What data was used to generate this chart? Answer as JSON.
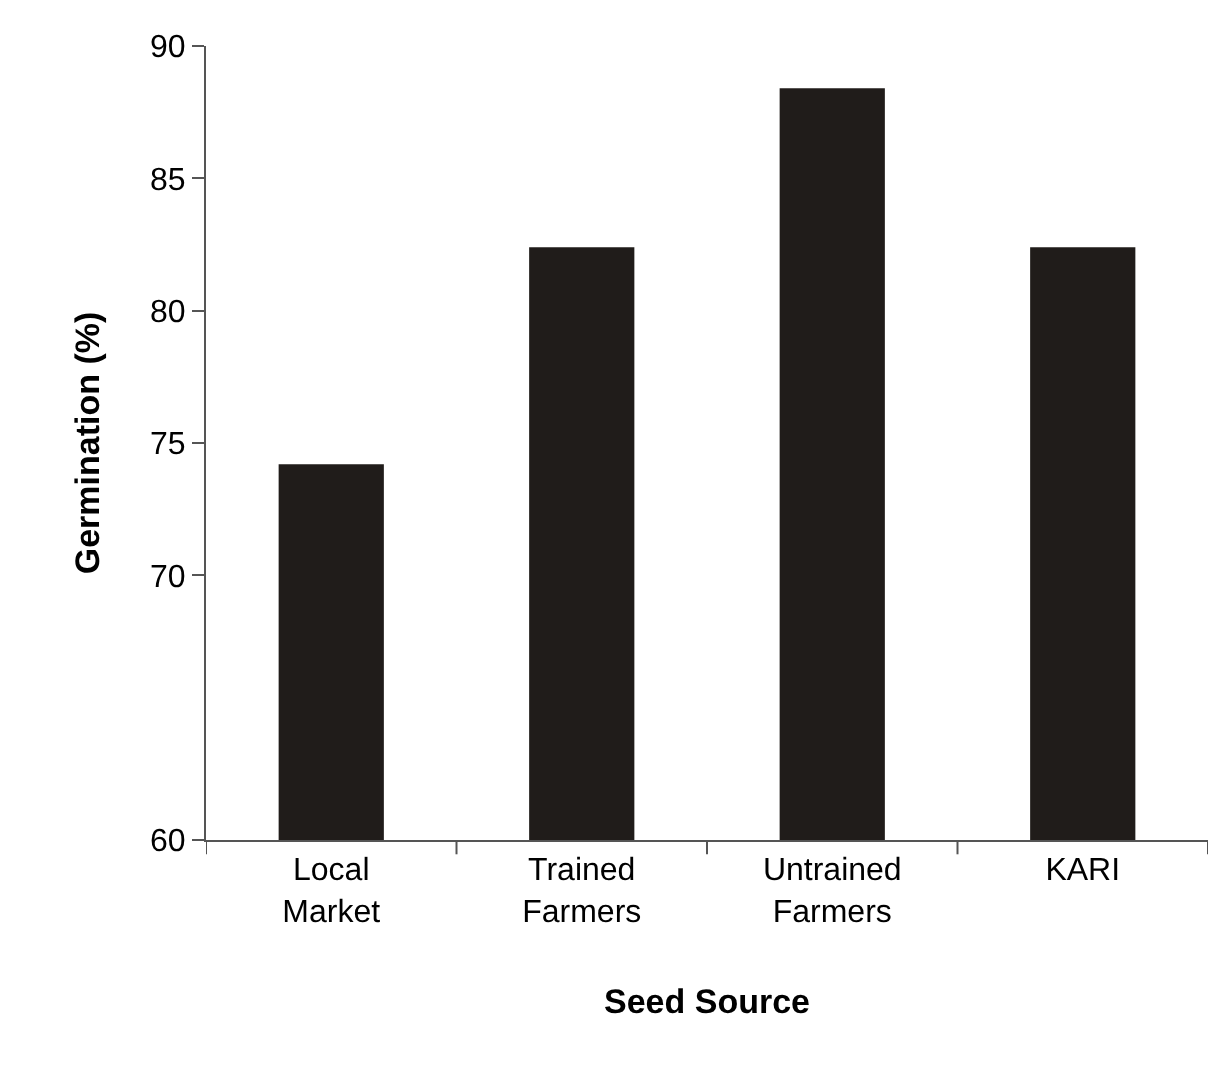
{
  "chart_data": {
    "type": "bar",
    "xlabel": "Seed Source",
    "ylabel": "Germination (%)",
    "categories": [
      "Local Market",
      "Trained Farmers",
      "Untrained Farmers",
      "KARI"
    ],
    "values": [
      74.2,
      82.4,
      88.4,
      82.4
    ],
    "color": "#201c1a",
    "ylim": [
      60,
      90
    ],
    "yticks": [
      60,
      70,
      75,
      80,
      85,
      90
    ]
  }
}
